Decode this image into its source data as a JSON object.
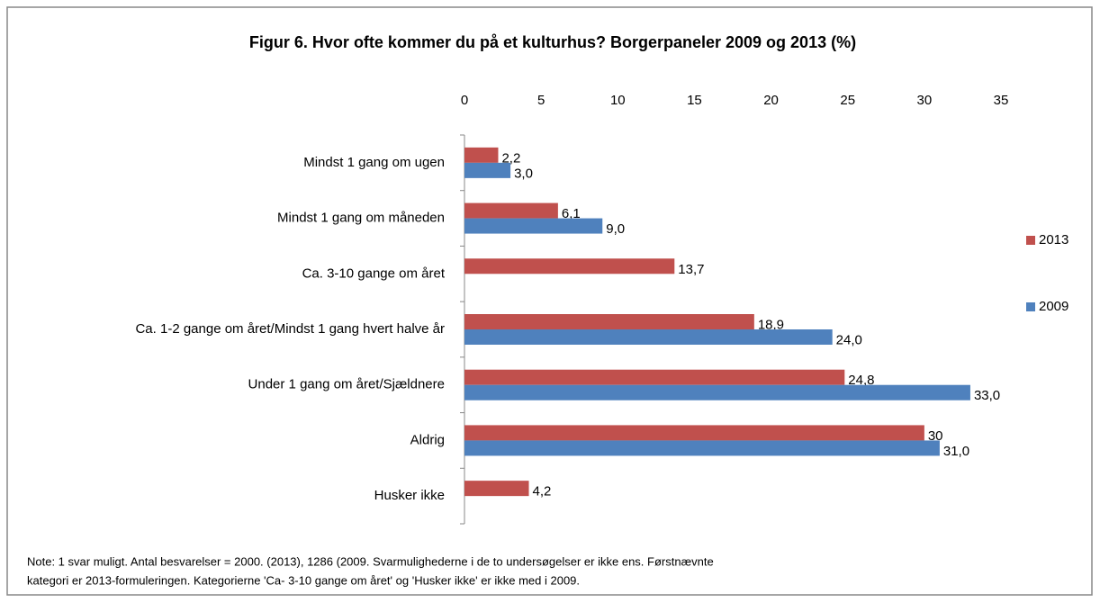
{
  "chart_data": {
    "type": "hbar",
    "title": "Figur 6. Hvor ofte kommer du på et kulturhus? Borgerpaneler 2009 og 2013 (%)",
    "categories": [
      "Mindst 1 gang om ugen",
      "Mindst 1 gang om måneden",
      "Ca. 3-10 gange om året",
      "Ca. 1-2 gange om året/Mindst 1 gang hvert halve år",
      "Under 1 gang om året/Sjældnere",
      "Aldrig",
      "Husker ikke"
    ],
    "series": [
      {
        "name": "2013",
        "color": "#c0504d",
        "values": [
          2.2,
          6.1,
          13.7,
          18.9,
          24.8,
          30,
          4.2
        ],
        "value_labels": [
          "2,2",
          "6,1",
          "13,7",
          "18,9",
          "24,8",
          "30",
          "4,2"
        ]
      },
      {
        "name": "2009",
        "color": "#4f81bd",
        "values": [
          3.0,
          9.0,
          null,
          24.0,
          33.0,
          31.0,
          null
        ],
        "value_labels": [
          "3,0",
          "9,0",
          null,
          "24,0",
          "33,0",
          "31,0",
          null
        ]
      }
    ],
    "xlim": [
      0,
      35
    ],
    "xticks": [
      0,
      5,
      10,
      15,
      20,
      25,
      30,
      35
    ],
    "grid": false,
    "legend": "right",
    "note": [
      "Note: 1 svar muligt. Antal besvarelser = 2000. (2013), 1286 (2009. Svarmulighederne i de to undersøgelser er ikke ens. Førstnævnte",
      "kategori er 2013-formuleringen. Kategorierne 'Ca- 3-10 gange om året' og 'Husker ikke' er ikke med i 2009."
    ]
  }
}
